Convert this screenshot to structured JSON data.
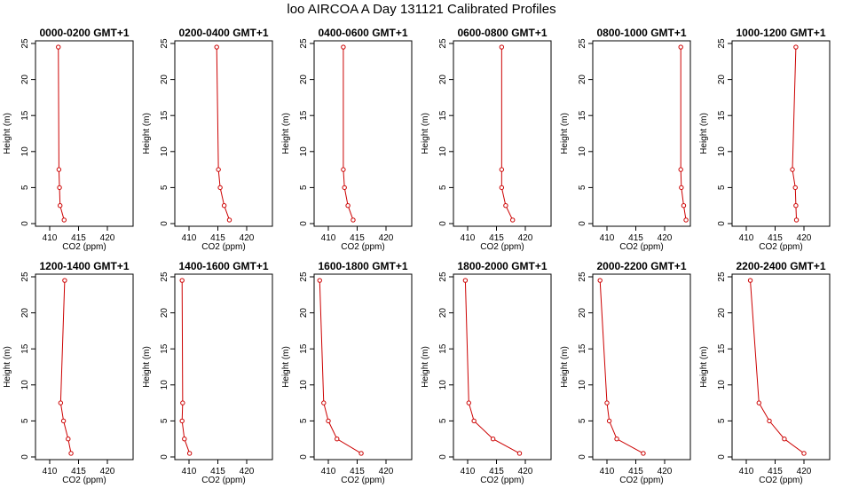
{
  "title": "loo AIRCOA A  Day 131121  Calibrated Profiles",
  "colors": {
    "series": "#cc0000",
    "axis": "#000000"
  },
  "chart_data": [
    {
      "type": "line",
      "title": "0000-0200 GMT+1",
      "xlabel": "CO2 (ppm)",
      "ylabel": "Height (m)",
      "xlim": [
        408,
        424
      ],
      "ylim": [
        0,
        25
      ],
      "xticks": [
        "410",
        "415",
        "420"
      ],
      "yticks": [
        "0",
        "5",
        "10",
        "15",
        "20",
        "25"
      ],
      "series": [
        {
          "x": [
            412.5,
            411.8,
            411.7,
            411.6,
            411.5
          ],
          "y": [
            0.5,
            2.5,
            5,
            7.5,
            24.5
          ]
        }
      ]
    },
    {
      "type": "line",
      "title": "0200-0400 GMT+1",
      "xlabel": "CO2 (ppm)",
      "ylabel": "Height (m)",
      "xlim": [
        408,
        424
      ],
      "ylim": [
        0,
        25
      ],
      "xticks": [
        "410",
        "415",
        "420"
      ],
      "yticks": [
        "0",
        "5",
        "10",
        "15",
        "20",
        "25"
      ],
      "series": [
        {
          "x": [
            417.0,
            416.1,
            415.4,
            415.1,
            414.8
          ],
          "y": [
            0.5,
            2.5,
            5,
            7.5,
            24.5
          ]
        }
      ]
    },
    {
      "type": "line",
      "title": "0400-0600 GMT+1",
      "xlabel": "CO2 (ppm)",
      "ylabel": "Height (m)",
      "xlim": [
        408,
        424
      ],
      "ylim": [
        0,
        25
      ],
      "xticks": [
        "410",
        "415",
        "420"
      ],
      "yticks": [
        "0",
        "5",
        "10",
        "15",
        "20",
        "25"
      ],
      "series": [
        {
          "x": [
            414.3,
            413.4,
            412.8,
            412.6,
            412.6
          ],
          "y": [
            0.5,
            2.5,
            5,
            7.5,
            24.5
          ]
        }
      ]
    },
    {
      "type": "line",
      "title": "0600-0800 GMT+1",
      "xlabel": "CO2 (ppm)",
      "ylabel": "Height (m)",
      "xlim": [
        408,
        424
      ],
      "ylim": [
        0,
        25
      ],
      "xticks": [
        "410",
        "415",
        "420"
      ],
      "yticks": [
        "0",
        "5",
        "10",
        "15",
        "20",
        "25"
      ],
      "series": [
        {
          "x": [
            417.8,
            416.6,
            415.9,
            415.9,
            415.9
          ],
          "y": [
            0.5,
            2.5,
            5,
            7.5,
            24.5
          ]
        }
      ]
    },
    {
      "type": "line",
      "title": "0800-1000 GMT+1",
      "xlabel": "CO2 (ppm)",
      "ylabel": "Height (m)",
      "xlim": [
        408,
        424
      ],
      "ylim": [
        0,
        25
      ],
      "xticks": [
        "410",
        "415",
        "420"
      ],
      "yticks": [
        "0",
        "5",
        "10",
        "15",
        "20",
        "25"
      ],
      "series": [
        {
          "x": [
            423.7,
            423.3,
            422.9,
            422.8,
            422.8
          ],
          "y": [
            0.5,
            2.5,
            5,
            7.5,
            24.5
          ]
        }
      ]
    },
    {
      "type": "line",
      "title": "1000-1200 GMT+1",
      "xlabel": "CO2 (ppm)",
      "ylabel": "Height (m)",
      "xlim": [
        408,
        424
      ],
      "ylim": [
        0,
        25
      ],
      "xticks": [
        "410",
        "415",
        "420"
      ],
      "yticks": [
        "0",
        "5",
        "10",
        "15",
        "20",
        "25"
      ],
      "series": [
        {
          "x": [
            418.7,
            418.6,
            418.5,
            418.0,
            418.6
          ],
          "y": [
            0.5,
            2.5,
            5,
            7.5,
            24.5
          ]
        }
      ]
    },
    {
      "type": "line",
      "title": "1200-1400 GMT+1",
      "xlabel": "CO2 (ppm)",
      "ylabel": "Height (m)",
      "xlim": [
        408,
        424
      ],
      "ylim": [
        0,
        25
      ],
      "xticks": [
        "410",
        "415",
        "420"
      ],
      "yticks": [
        "0",
        "5",
        "10",
        "15",
        "20",
        "25"
      ],
      "series": [
        {
          "x": [
            413.7,
            413.2,
            412.4,
            411.9,
            412.6
          ],
          "y": [
            0.5,
            2.5,
            5,
            7.5,
            24.5
          ]
        }
      ]
    },
    {
      "type": "line",
      "title": "1400-1600 GMT+1",
      "xlabel": "CO2 (ppm)",
      "ylabel": "Height (m)",
      "xlim": [
        408,
        424
      ],
      "ylim": [
        0,
        25
      ],
      "xticks": [
        "410",
        "415",
        "420"
      ],
      "yticks": [
        "0",
        "5",
        "10",
        "15",
        "20",
        "25"
      ],
      "series": [
        {
          "x": [
            410.1,
            409.2,
            408.8,
            408.9,
            408.8
          ],
          "y": [
            0.5,
            2.5,
            5,
            7.5,
            24.5
          ]
        }
      ]
    },
    {
      "type": "line",
      "title": "1600-1800 GMT+1",
      "xlabel": "CO2 (ppm)",
      "ylabel": "Height (m)",
      "xlim": [
        408,
        424
      ],
      "ylim": [
        0,
        25
      ],
      "xticks": [
        "410",
        "415",
        "420"
      ],
      "yticks": [
        "0",
        "5",
        "10",
        "15",
        "20",
        "25"
      ],
      "series": [
        {
          "x": [
            415.7,
            411.5,
            410.0,
            409.2,
            408.5
          ],
          "y": [
            0.5,
            2.5,
            5,
            7.5,
            24.5
          ]
        }
      ]
    },
    {
      "type": "line",
      "title": "1800-2000 GMT+1",
      "xlabel": "CO2 (ppm)",
      "ylabel": "Height (m)",
      "xlim": [
        408,
        424
      ],
      "ylim": [
        0,
        25
      ],
      "xticks": [
        "410",
        "415",
        "420"
      ],
      "yticks": [
        "0",
        "5",
        "10",
        "15",
        "20",
        "25"
      ],
      "series": [
        {
          "x": [
            419.0,
            414.4,
            411.1,
            410.2,
            409.6
          ],
          "y": [
            0.5,
            2.5,
            5,
            7.5,
            24.5
          ]
        }
      ]
    },
    {
      "type": "line",
      "title": "2000-2200 GMT+1",
      "xlabel": "CO2 (ppm)",
      "ylabel": "Height (m)",
      "xlim": [
        408,
        424
      ],
      "ylim": [
        0,
        25
      ],
      "xticks": [
        "410",
        "415",
        "420"
      ],
      "yticks": [
        "0",
        "5",
        "10",
        "15",
        "20",
        "25"
      ],
      "series": [
        {
          "x": [
            416.3,
            411.7,
            410.4,
            410.0,
            408.8
          ],
          "y": [
            0.5,
            2.5,
            5,
            7.5,
            24.5
          ]
        }
      ]
    },
    {
      "type": "line",
      "title": "2200-2400 GMT+1",
      "xlabel": "CO2 (ppm)",
      "ylabel": "Height (m)",
      "xlim": [
        408,
        424
      ],
      "ylim": [
        0,
        25
      ],
      "xticks": [
        "410",
        "415",
        "420"
      ],
      "yticks": [
        "0",
        "5",
        "10",
        "15",
        "20",
        "25"
      ],
      "series": [
        {
          "x": [
            420.0,
            416.6,
            414.0,
            412.2,
            410.7
          ],
          "y": [
            0.5,
            2.5,
            5,
            7.5,
            24.5
          ]
        }
      ]
    }
  ]
}
